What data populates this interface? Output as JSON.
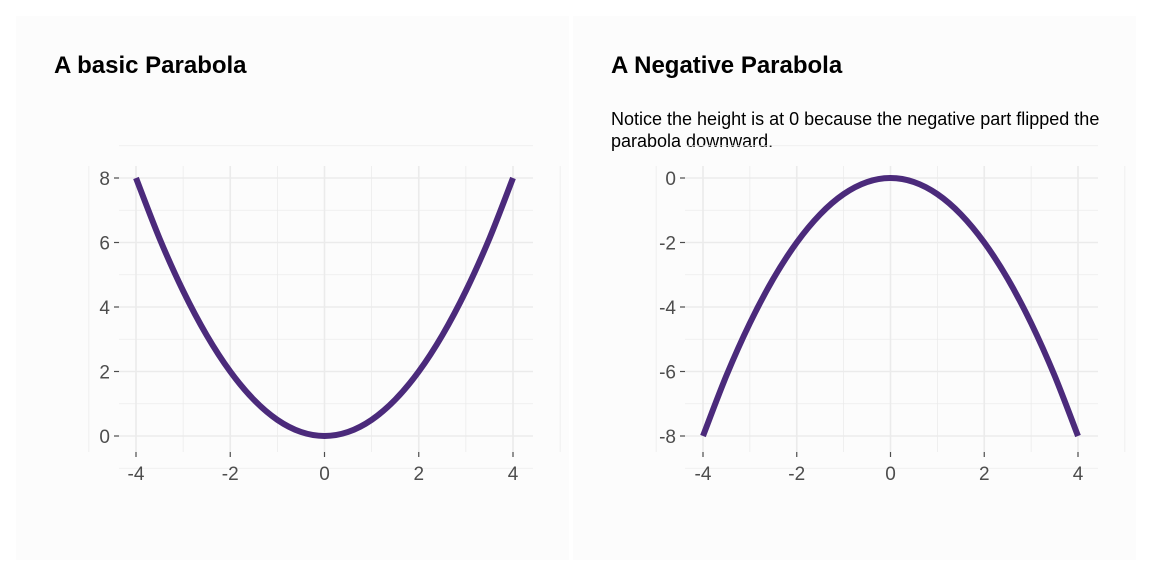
{
  "chart_data": [
    {
      "type": "line",
      "title": "A basic Parabola",
      "subtitle": "",
      "xlabel": "",
      "ylabel": "",
      "function": "y = 0.5 * x^2",
      "x": [
        -4,
        -3.5,
        -3,
        -2.5,
        -2,
        -1.5,
        -1,
        -0.5,
        0,
        0.5,
        1,
        1.5,
        2,
        2.5,
        3,
        3.5,
        4
      ],
      "y": [
        8,
        6.125,
        4.5,
        3.125,
        2,
        1.125,
        0.5,
        0.125,
        0,
        0.125,
        0.5,
        1.125,
        2,
        3.125,
        4.5,
        6.125,
        8
      ],
      "xlim": [
        -4,
        4
      ],
      "ylim": [
        0,
        8
      ],
      "xticks": [
        -4,
        -2,
        0,
        2,
        4
      ],
      "yticks": [
        0,
        2,
        4,
        6,
        8
      ],
      "xtick_labels": [
        "-4",
        "-2",
        "0",
        "2",
        "4"
      ],
      "ytick_labels": [
        "0",
        "2",
        "4",
        "6",
        "8"
      ],
      "line_color": "#4b2a7b",
      "grid": true,
      "legend": "none"
    },
    {
      "type": "line",
      "title": "A Negative Parabola",
      "subtitle": "Notice the height is at 0 because the negative part flipped the parabola downward.",
      "xlabel": "",
      "ylabel": "",
      "function": "y = -0.5 * x^2",
      "x": [
        -4,
        -3.5,
        -3,
        -2.5,
        -2,
        -1.5,
        -1,
        -0.5,
        0,
        0.5,
        1,
        1.5,
        2,
        2.5,
        3,
        3.5,
        4
      ],
      "y": [
        -8,
        -6.125,
        -4.5,
        -3.125,
        -2,
        -1.125,
        -0.5,
        -0.125,
        0,
        -0.125,
        -0.5,
        -1.125,
        -2,
        -3.125,
        -4.5,
        -6.125,
        -8
      ],
      "xlim": [
        -4,
        4
      ],
      "ylim": [
        -8,
        0
      ],
      "xticks": [
        -4,
        -2,
        0,
        2,
        4
      ],
      "yticks": [
        -8,
        -6,
        -4,
        -2,
        0
      ],
      "xtick_labels": [
        "-4",
        "-2",
        "0",
        "2",
        "4"
      ],
      "ytick_labels": [
        "-8",
        "-6",
        "-4",
        "-2",
        "0"
      ],
      "line_color": "#4b2a7b",
      "grid": true,
      "legend": "none"
    }
  ],
  "colors": {
    "panel_background": "#fcfcfc",
    "grid": "#ebebeb",
    "tick_text": "#4d4d4d"
  }
}
